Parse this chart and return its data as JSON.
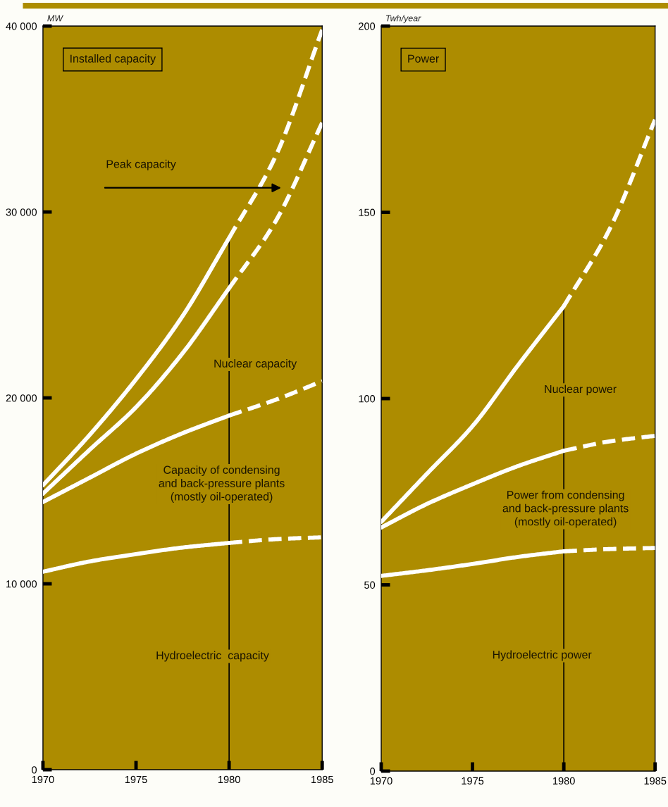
{
  "chart_data": [
    {
      "type": "line",
      "title": "Installed capacity",
      "ylabel": "MW",
      "xlim": [
        1970,
        1985
      ],
      "xticks": [
        1970,
        1975,
        1980,
        1985
      ],
      "ylim": [
        0,
        40000
      ],
      "yticks": [
        {
          "value": 0,
          "label": "0"
        },
        {
          "value": 10000,
          "label": "10 000"
        },
        {
          "value": 20000,
          "label": "20 000"
        },
        {
          "value": 30000,
          "label": "30 000"
        },
        {
          "value": 40000,
          "label": "40 000"
        }
      ],
      "grid": false,
      "legend": false,
      "series": [
        {
          "color": "#ffffff",
          "line_style": "solid",
          "x": [
            1970,
            1972.5,
            1975,
            1977.5,
            1980
          ],
          "values": [
            15300,
            18000,
            21000,
            24400,
            28600
          ]
        },
        {
          "color": "#ffffff",
          "line_style": "dashed",
          "x": [
            1980,
            1982.5,
            1985
          ],
          "values": [
            28600,
            33000,
            39800
          ]
        },
        {
          "color": "#ffffff",
          "line_style": "solid",
          "x": [
            1970,
            1972.5,
            1975,
            1977.5,
            1980
          ],
          "values": [
            14850,
            17200,
            19500,
            22400,
            25900
          ]
        },
        {
          "color": "#ffffff",
          "line_style": "dashed",
          "x": [
            1980,
            1982.5,
            1985
          ],
          "values": [
            25900,
            29500,
            34800
          ]
        },
        {
          "color": "#ffffff",
          "line_style": "solid",
          "x": [
            1970,
            1972.5,
            1975,
            1977.5,
            1980
          ],
          "values": [
            14400,
            15700,
            17000,
            18100,
            19050
          ]
        },
        {
          "color": "#ffffff",
          "line_style": "dashed",
          "x": [
            1980,
            1982.5,
            1985
          ],
          "values": [
            19050,
            19900,
            20900
          ]
        },
        {
          "color": "#ffffff",
          "line_style": "solid",
          "x": [
            1970,
            1972.5,
            1975,
            1977.5,
            1980
          ],
          "values": [
            10650,
            11200,
            11600,
            11950,
            12200
          ]
        },
        {
          "color": "#ffffff",
          "line_style": "dashed",
          "x": [
            1980,
            1982.5,
            1985
          ],
          "values": [
            12200,
            12400,
            12500
          ]
        }
      ],
      "ref_lines": [
        {
          "axis": "x",
          "value": 1980,
          "color": "#000000"
        }
      ],
      "annotations": [
        "Peak capacity",
        "Nuclear capacity",
        "Capacity of condensing\nand back-pressure plants\n(mostly oil-operated)",
        "Hydroelectric  capacity"
      ]
    },
    {
      "type": "line",
      "title": "Power",
      "ylabel": "Twh/year",
      "xlim": [
        1970,
        1985
      ],
      "xticks": [
        1970,
        1975,
        1980,
        1985
      ],
      "ylim": [
        0,
        200
      ],
      "yticks": [
        0,
        50,
        100,
        150,
        200
      ],
      "grid": false,
      "legend": false,
      "series": [
        {
          "color": "#ffffff",
          "line_style": "solid",
          "x": [
            1970,
            1972.5,
            1975,
            1977.5,
            1980
          ],
          "values": [
            66.9,
            79.8,
            92.6,
            109,
            124.8
          ]
        },
        {
          "color": "#ffffff",
          "line_style": "dashed",
          "x": [
            1980,
            1982.5,
            1985
          ],
          "values": [
            124.8,
            145.4,
            174.9
          ]
        },
        {
          "color": "#ffffff",
          "line_style": "solid",
          "x": [
            1970,
            1972.5,
            1975,
            1977.5,
            1980
          ],
          "values": [
            65.4,
            71.7,
            77,
            81.9,
            86
          ]
        },
        {
          "color": "#ffffff",
          "line_style": "dashed",
          "x": [
            1980,
            1982.5,
            1985
          ],
          "values": [
            86,
            88.5,
            90
          ]
        },
        {
          "color": "#ffffff",
          "line_style": "solid",
          "x": [
            1970,
            1972.5,
            1975,
            1977.5,
            1980
          ],
          "values": [
            52.4,
            53.9,
            55.6,
            57.5,
            59
          ]
        },
        {
          "color": "#ffffff",
          "line_style": "dashed",
          "x": [
            1980,
            1982.5,
            1985
          ],
          "values": [
            59,
            59.6,
            59.9
          ]
        }
      ],
      "ref_lines": [
        {
          "axis": "x",
          "value": 1980,
          "color": "#000000"
        }
      ],
      "annotations": [
        "Nuclear power",
        "Power from condensing\nand back-pressure plants\n(mostly oil-operated)",
        "Hydroelectric power"
      ]
    }
  ]
}
